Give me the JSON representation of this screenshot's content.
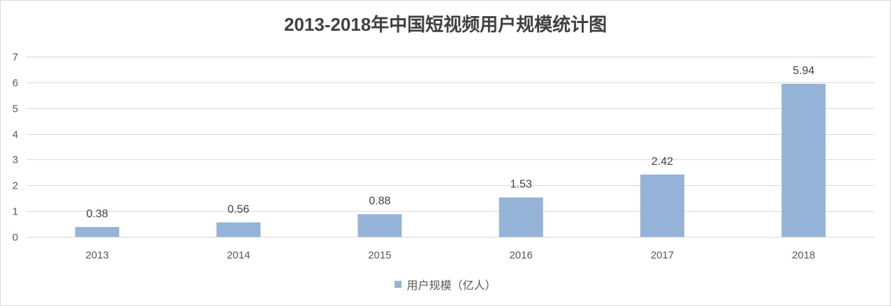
{
  "chart_data": {
    "type": "bar",
    "title": "2013-2018年中国短视频用户规模统计图",
    "categories": [
      "2013",
      "2014",
      "2015",
      "2016",
      "2017",
      "2018"
    ],
    "series": [
      {
        "name": "用户规模（亿人）",
        "values": [
          0.38,
          0.56,
          0.88,
          1.53,
          2.42,
          5.94
        ]
      }
    ],
    "ylim": [
      0,
      7
    ],
    "yticks": [
      0,
      1,
      2,
      3,
      4,
      5,
      6,
      7
    ],
    "grid": true,
    "legend_position": "bottom",
    "data_labels": true,
    "colors": {
      "bar": "#95B3D7",
      "grid": "#D9D9D9",
      "axis_text": "#595959",
      "label_text": "#404040",
      "title": "#404040"
    }
  }
}
